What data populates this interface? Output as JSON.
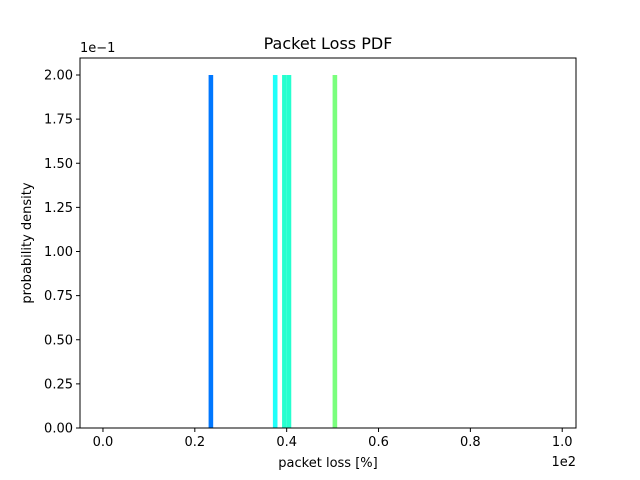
{
  "chart_data": {
    "type": "bar",
    "title": "Packet Loss PDF",
    "xlabel": "packet loss [%]",
    "ylabel": "probability density",
    "x_offset_label": "1e2",
    "y_offset_label": "1e−1",
    "xlim": [
      -0.05,
      1.03
    ],
    "ylim": [
      0.0,
      2.0
    ],
    "xticks": [
      0.0,
      0.2,
      0.4,
      0.6,
      0.8,
      1.0
    ],
    "xtick_labels": [
      "0.0",
      "0.2",
      "0.4",
      "0.6",
      "0.8",
      "1.0"
    ],
    "yticks": [
      0.0,
      0.25,
      0.5,
      0.75,
      1.0,
      1.25,
      1.5,
      1.75,
      2.0
    ],
    "ytick_labels": [
      "0.00",
      "0.25",
      "0.50",
      "0.75",
      "1.00",
      "1.25",
      "1.50",
      "1.75",
      "2.00"
    ],
    "grid": false,
    "bars": [
      {
        "x": 0.23,
        "width": 0.01,
        "value": 2.0,
        "color": "#0077ff"
      },
      {
        "x": 0.37,
        "width": 0.01,
        "value": 2.0,
        "color": "#1ffffa"
      },
      {
        "x": 0.39,
        "width": 0.01,
        "value": 2.0,
        "color": "#26ffcf"
      },
      {
        "x": 0.4,
        "width": 0.01,
        "value": 2.0,
        "color": "#26ffcf"
      },
      {
        "x": 0.5,
        "width": 0.01,
        "value": 2.0,
        "color": "#7aff7d"
      }
    ]
  }
}
